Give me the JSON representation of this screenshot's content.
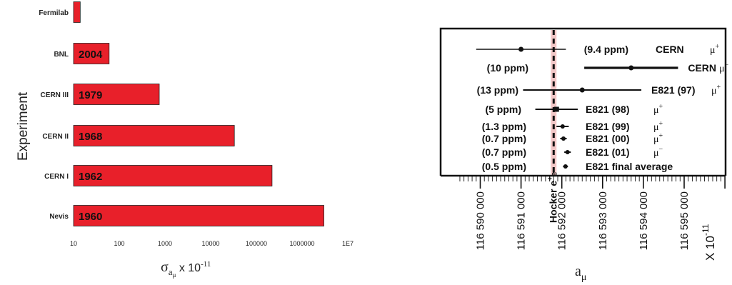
{
  "chart_data": [
    {
      "type": "bar",
      "orientation": "horizontal",
      "ylabel": "Experiment",
      "xlabel": "σ",
      "xlabel_sub": "a",
      "xlabel_subsub": "μ",
      "xlabel_suffix": " x 10",
      "xlabel_exp": "-11",
      "xscale": "log",
      "xlim": [
        10,
        10000000
      ],
      "xticks": [
        10,
        100,
        1000,
        10000,
        100000,
        1000000,
        10000000
      ],
      "xtick_labels": [
        "10",
        "100",
        "1000",
        "10000",
        "100000",
        "1000000",
        "1E7"
      ],
      "bar_color": "#e8202a",
      "categories": [
        "Fermilab",
        "BNL",
        "CERN III",
        "CERN II",
        "CERN I",
        "Nevis"
      ],
      "values": [
        14,
        60,
        750,
        33000,
        220000,
        3000000
      ],
      "bar_labels": [
        "",
        "2004",
        "1979",
        "1968",
        "1962",
        "1960"
      ],
      "grid": false
    },
    {
      "type": "scatter",
      "subtype": "errorbar",
      "xlabel": "a",
      "xlabel_sub": "μ",
      "scale_label": "X 10",
      "scale_exp": "-11",
      "xlim": [
        116589500,
        116596200
      ],
      "xticks": [
        116590000,
        116591000,
        116592000,
        116593000,
        116594000,
        116595000
      ],
      "xtick_labels": [
        "116 590 000",
        "116 591 000",
        "116 592 000",
        "116 593 000",
        "116 594 000",
        "116 595 000"
      ],
      "reference": {
        "label": "Hocker e",
        "label_sup": "+",
        "label_sub": "e",
        "value": 116591800
      },
      "points": [
        {
          "label": "CERN",
          "particle": "μ",
          "charge": "+",
          "precision": "(9.4 ppm)",
          "value": 116591000,
          "err": 1100
        },
        {
          "label": "CERN",
          "particle": "μ",
          "charge": "−",
          "precision": "(10 ppm)",
          "value": 116593700,
          "err": 1150
        },
        {
          "label": "E821 (97)",
          "particle": "μ",
          "charge": "+",
          "precision": "(13 ppm)",
          "value": 116592500,
          "err": 1450
        },
        {
          "label": "E821 (98)",
          "particle": "μ",
          "charge": "+",
          "precision": "(5 ppm)",
          "value": 116591870,
          "err": 520
        },
        {
          "label": "E821 (99)",
          "particle": "μ",
          "charge": "+",
          "precision": "(1.3 ppm)",
          "value": 116592020,
          "err": 150
        },
        {
          "label": "E821 (00)",
          "particle": "μ",
          "charge": "+",
          "precision": "(0.7 ppm)",
          "value": 116592040,
          "err": 80
        },
        {
          "label": "E821 (01)",
          "particle": "μ",
          "charge": "−",
          "precision": "(0.7 ppm)",
          "value": 116592140,
          "err": 80
        },
        {
          "label": "E821 final average",
          "particle": "",
          "charge": "",
          "precision": "(0.5 ppm)",
          "value": 116592090,
          "err": 60
        }
      ]
    }
  ]
}
